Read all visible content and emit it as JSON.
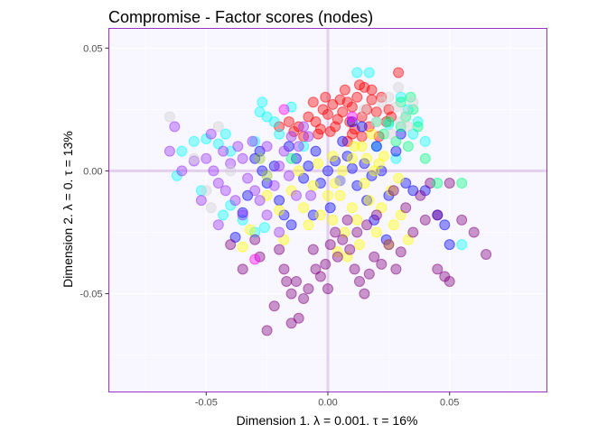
{
  "chart_data": {
    "type": "scatter",
    "title": "Compromise - Factor scores (nodes)",
    "xlabel": "Dimension 1.   λ = 0.001.  τ = 16%",
    "ylabel": "Dimension 2.   λ = 0.  τ = 13%",
    "xlim": [
      -0.09,
      0.09
    ],
    "ylim": [
      -0.09,
      0.058
    ],
    "x_ticks": [
      -0.05,
      0.0,
      0.05
    ],
    "x_tick_labels": [
      "-0.05",
      "0.00",
      "0.05"
    ],
    "y_ticks": [
      -0.05,
      0.0,
      0.05
    ],
    "y_tick_labels": [
      "-0.05",
      "0.00",
      "0.05"
    ],
    "grid": true,
    "origin_lines": true,
    "point_opacity": 0.4,
    "colors": {
      "panel_background": "#f8f6fe",
      "panel_border": "#9933cc",
      "origin_line": "#e3cfee",
      "grid": "#ffffff"
    },
    "series": [
      {
        "color": "#ff0000",
        "points": [
          [
            -0.012,
            0.018
          ],
          [
            -0.008,
            0.022
          ],
          [
            -0.005,
            0.02
          ],
          [
            -0.002,
            0.025
          ],
          [
            0.0,
            0.023
          ],
          [
            0.002,
            0.027
          ],
          [
            0.004,
            0.021
          ],
          [
            0.006,
            0.024
          ],
          [
            0.008,
            0.028
          ],
          [
            0.01,
            0.026
          ],
          [
            0.012,
            0.03
          ],
          [
            0.014,
            0.022
          ],
          [
            0.016,
            0.025
          ],
          [
            0.018,
            0.029
          ],
          [
            0.02,
            0.024
          ],
          [
            0.013,
            0.035
          ],
          [
            0.015,
            0.034
          ],
          [
            0.009,
            0.02
          ],
          [
            0.011,
            0.017
          ],
          [
            -0.003,
            0.017
          ],
          [
            0.001,
            0.016
          ],
          [
            -0.01,
            0.014
          ],
          [
            -0.014,
            0.016
          ],
          [
            -0.016,
            0.02
          ],
          [
            0.005,
            0.029
          ],
          [
            0.007,
            0.033
          ],
          [
            0.022,
            0.03
          ],
          [
            0.024,
            0.02
          ],
          [
            -0.006,
            0.028
          ],
          [
            -0.001,
            0.03
          ],
          [
            0.018,
            0.033
          ],
          [
            0.003,
            0.018
          ],
          [
            0.01,
            0.015
          ],
          [
            -0.02,
            0.018
          ],
          [
            0.025,
            0.025
          ],
          [
            0.017,
            0.018
          ],
          [
            0.021,
            0.014
          ],
          [
            -0.004,
            0.015
          ],
          [
            0.008,
            0.012
          ],
          [
            0.014,
            0.014
          ],
          [
            0.029,
            0.04
          ],
          [
            0.026,
            0.022
          ]
        ]
      },
      {
        "color": "#00ffff",
        "points": [
          [
            -0.062,
            -0.002
          ],
          [
            -0.06,
            0.008
          ],
          [
            -0.055,
            0.012
          ],
          [
            -0.05,
            0.013
          ],
          [
            -0.045,
            0.011
          ],
          [
            -0.042,
            0.015
          ],
          [
            -0.04,
            0.008
          ],
          [
            -0.028,
            0.024
          ],
          [
            -0.027,
            0.028
          ],
          [
            -0.025,
            0.022
          ],
          [
            -0.022,
            0.02
          ],
          [
            -0.052,
            -0.008
          ],
          [
            -0.043,
            -0.018
          ],
          [
            -0.04,
            -0.014
          ],
          [
            -0.035,
            -0.02
          ],
          [
            -0.03,
            -0.025
          ],
          [
            -0.026,
            -0.023
          ],
          [
            -0.02,
            0.015
          ],
          [
            0.03,
            0.03
          ],
          [
            0.033,
            0.025
          ],
          [
            0.035,
            0.015
          ],
          [
            0.037,
            0.02
          ],
          [
            0.04,
            0.012
          ],
          [
            0.025,
            0.019
          ],
          [
            0.02,
            0.01
          ],
          [
            0.028,
            0.005
          ],
          [
            0.055,
            -0.03
          ],
          [
            -0.01,
            0.01
          ],
          [
            -0.03,
            0.012
          ],
          [
            0.012,
            0.04
          ],
          [
            0.017,
            0.04
          ],
          [
            -0.015,
            0.026
          ]
        ]
      },
      {
        "color": "#0000ff",
        "points": [
          [
            -0.035,
            -0.017
          ],
          [
            -0.038,
            -0.027
          ],
          [
            -0.033,
            -0.01
          ],
          [
            -0.03,
            0.005
          ],
          [
            -0.027,
            0.0
          ],
          [
            -0.025,
            -0.005
          ],
          [
            -0.02,
            -0.012
          ],
          [
            -0.018,
            -0.018
          ],
          [
            -0.015,
            -0.022
          ],
          [
            -0.013,
            0.005
          ],
          [
            -0.01,
            -0.003
          ],
          [
            -0.008,
            0.002
          ],
          [
            -0.005,
            0.008
          ],
          [
            -0.003,
            -0.005
          ],
          [
            0.0,
            0.0
          ],
          [
            0.003,
            0.004
          ],
          [
            0.005,
            -0.004
          ],
          [
            0.008,
            0.006
          ],
          [
            0.01,
            0.001
          ],
          [
            0.012,
            -0.006
          ],
          [
            0.015,
            0.003
          ],
          [
            0.018,
            -0.002
          ],
          [
            0.02,
            0.01
          ],
          [
            0.022,
            0.0
          ],
          [
            0.025,
            -0.01
          ],
          [
            0.028,
            0.008
          ],
          [
            0.03,
            0.015
          ],
          [
            0.032,
            -0.005
          ],
          [
            0.035,
            -0.008
          ],
          [
            0.04,
            -0.008
          ],
          [
            0.045,
            -0.018
          ],
          [
            0.05,
            -0.03
          ],
          [
            0.048,
            -0.022
          ],
          [
            -0.022,
            0.002
          ],
          [
            -0.016,
            0.01
          ],
          [
            0.006,
            0.012
          ],
          [
            0.014,
            0.018
          ],
          [
            0.001,
            -0.015
          ],
          [
            -0.006,
            -0.018
          ],
          [
            0.016,
            -0.012
          ],
          [
            -0.028,
            0.008
          ],
          [
            0.01,
            0.02
          ],
          [
            0.019,
            -0.02
          ],
          [
            0.024,
            -0.028
          ]
        ]
      },
      {
        "color": "#ffff00",
        "points": [
          [
            -0.035,
            -0.031
          ],
          [
            -0.032,
            -0.024
          ],
          [
            -0.025,
            -0.01
          ],
          [
            -0.02,
            -0.016
          ],
          [
            -0.015,
            -0.008
          ],
          [
            -0.01,
            -0.015
          ],
          [
            -0.008,
            -0.022
          ],
          [
            -0.003,
            -0.018
          ],
          [
            0.0,
            -0.01
          ],
          [
            0.002,
            -0.02
          ],
          [
            0.005,
            -0.01
          ],
          [
            0.007,
            -0.025
          ],
          [
            0.01,
            -0.015
          ],
          [
            0.012,
            -0.02
          ],
          [
            0.015,
            -0.005
          ],
          [
            0.017,
            -0.012
          ],
          [
            0.02,
            -0.025
          ],
          [
            0.022,
            -0.015
          ],
          [
            0.025,
            -0.03
          ],
          [
            0.027,
            -0.022
          ],
          [
            0.03,
            -0.018
          ],
          [
            0.033,
            -0.028
          ],
          [
            0.018,
            0.015
          ],
          [
            0.014,
            0.01
          ],
          [
            0.01,
            0.005
          ],
          [
            0.006,
            0.0
          ],
          [
            0.002,
            0.006
          ],
          [
            -0.004,
            0.003
          ],
          [
            -0.006,
            -0.006
          ],
          [
            0.008,
            -0.035
          ],
          [
            0.013,
            -0.03
          ],
          [
            0.004,
            -0.033
          ],
          [
            0.016,
            0.005
          ],
          [
            0.021,
            0.003
          ],
          [
            0.019,
            0.0
          ],
          [
            -0.012,
            0.0
          ],
          [
            0.011,
            0.01
          ],
          [
            0.023,
            0.006
          ],
          [
            0.026,
            -0.008
          ],
          [
            -0.018,
            -0.028
          ],
          [
            0.029,
            -0.003
          ],
          [
            0.003,
            -0.005
          ]
        ]
      },
      {
        "color": "#800080",
        "points": [
          [
            -0.025,
            -0.065
          ],
          [
            -0.022,
            -0.055
          ],
          [
            -0.017,
            -0.045
          ],
          [
            -0.015,
            -0.05
          ],
          [
            -0.012,
            -0.06
          ],
          [
            -0.01,
            -0.052
          ],
          [
            -0.008,
            -0.048
          ],
          [
            -0.005,
            -0.04
          ],
          [
            -0.003,
            -0.043
          ],
          [
            -0.001,
            -0.038
          ],
          [
            0.001,
            -0.03
          ],
          [
            0.004,
            -0.035
          ],
          [
            0.006,
            -0.028
          ],
          [
            0.009,
            -0.032
          ],
          [
            0.011,
            -0.04
          ],
          [
            0.013,
            -0.045
          ],
          [
            0.015,
            -0.05
          ],
          [
            0.017,
            -0.042
          ],
          [
            0.019,
            -0.035
          ],
          [
            0.022,
            -0.038
          ],
          [
            0.025,
            -0.03
          ],
          [
            0.028,
            -0.04
          ],
          [
            0.03,
            -0.033
          ],
          [
            0.035,
            -0.025
          ],
          [
            0.04,
            -0.02
          ],
          [
            0.045,
            -0.04
          ],
          [
            0.048,
            -0.043
          ],
          [
            0.05,
            -0.045
          ],
          [
            0.055,
            -0.02
          ],
          [
            0.06,
            -0.025
          ],
          [
            0.065,
            -0.034
          ],
          [
            0.05,
            -0.005
          ],
          [
            0.045,
            -0.018
          ],
          [
            -0.035,
            -0.04
          ],
          [
            -0.03,
            -0.028
          ],
          [
            -0.028,
            -0.035
          ],
          [
            -0.02,
            -0.032
          ],
          [
            -0.018,
            -0.04
          ],
          [
            -0.04,
            -0.03
          ],
          [
            -0.015,
            -0.062
          ],
          [
            -0.013,
            -0.045
          ],
          [
            -0.006,
            -0.032
          ],
          [
            0.0,
            -0.048
          ],
          [
            0.003,
            -0.025
          ],
          [
            0.008,
            -0.02
          ],
          [
            0.012,
            -0.025
          ],
          [
            0.016,
            -0.022
          ],
          [
            0.02,
            -0.018
          ],
          [
            0.032,
            -0.015
          ],
          [
            0.038,
            -0.01
          ],
          [
            0.027,
            -0.008
          ],
          [
            0.042,
            -0.005
          ]
        ]
      },
      {
        "color": "#9932ff",
        "points": [
          [
            -0.063,
            0.018
          ],
          [
            -0.065,
            0.008
          ],
          [
            -0.06,
            0.0
          ],
          [
            -0.055,
            0.004
          ],
          [
            -0.05,
            0.005
          ],
          [
            -0.047,
            0.0
          ],
          [
            -0.045,
            -0.005
          ],
          [
            -0.042,
            -0.008
          ],
          [
            -0.04,
            0.003
          ],
          [
            -0.038,
            -0.012
          ],
          [
            -0.035,
            0.005
          ],
          [
            -0.033,
            -0.003
          ],
          [
            -0.03,
            -0.008
          ],
          [
            -0.028,
            -0.012
          ],
          [
            -0.025,
            -0.018
          ],
          [
            -0.022,
            -0.006
          ],
          [
            -0.02,
            0.002
          ],
          [
            -0.018,
            0.008
          ],
          [
            -0.016,
            -0.002
          ],
          [
            -0.015,
            0.014
          ],
          [
            -0.013,
            -0.01
          ],
          [
            -0.012,
            0.01
          ],
          [
            -0.008,
            0.014
          ],
          [
            -0.048,
            0.015
          ],
          [
            -0.052,
            -0.012
          ],
          [
            -0.043,
            0.008
          ],
          [
            -0.037,
            0.01
          ],
          [
            -0.025,
            0.01
          ],
          [
            -0.02,
            -0.025
          ],
          [
            -0.045,
            -0.022
          ],
          [
            -0.01,
            0.018
          ],
          [
            -0.007,
            -0.01
          ],
          [
            -0.031,
            0.012
          ],
          [
            -0.035,
            -0.018
          ]
        ]
      },
      {
        "color": "#00ff7f",
        "points": [
          [
            0.025,
            0.02
          ],
          [
            0.03,
            0.028
          ],
          [
            0.032,
            0.022
          ],
          [
            0.035,
            0.025
          ],
          [
            0.037,
            0.018
          ],
          [
            0.04,
            0.005
          ],
          [
            0.045,
            -0.005
          ],
          [
            0.055,
            -0.005
          ],
          [
            0.028,
            0.012
          ],
          [
            0.033,
            0.01
          ],
          [
            0.023,
            0.015
          ],
          [
            0.034,
            0.03
          ],
          [
            0.03,
            0.018
          ],
          [
            0.02,
            0.02
          ],
          [
            -0.015,
            0.005
          ]
        ]
      },
      {
        "color": "#d3d3d3",
        "points": [
          [
            -0.065,
            0.022
          ],
          [
            -0.055,
            0.005
          ],
          [
            -0.05,
            -0.008
          ],
          [
            -0.048,
            -0.015
          ],
          [
            -0.045,
            0.018
          ],
          [
            -0.04,
            0.0
          ],
          [
            0.025,
            0.03
          ],
          [
            0.028,
            0.026
          ],
          [
            0.03,
            0.02
          ],
          [
            0.032,
            0.024
          ],
          [
            0.035,
            0.028
          ],
          [
            0.033,
            0.018
          ],
          [
            0.022,
            0.028
          ],
          [
            0.026,
            0.015
          ],
          [
            0.02,
            0.02
          ],
          [
            0.029,
            0.034
          ],
          [
            0.015,
            0.025
          ],
          [
            0.005,
            -0.004
          ]
        ]
      },
      {
        "color": "#ff00ff",
        "points": [
          [
            -0.03,
            -0.036
          ],
          [
            -0.018,
            0.025
          ],
          [
            0.01,
            0.022
          ]
        ]
      },
      {
        "color": "#9acd32",
        "points": [
          [
            -0.028,
            0.005
          ],
          [
            -0.025,
            -0.002
          ]
        ]
      }
    ]
  }
}
